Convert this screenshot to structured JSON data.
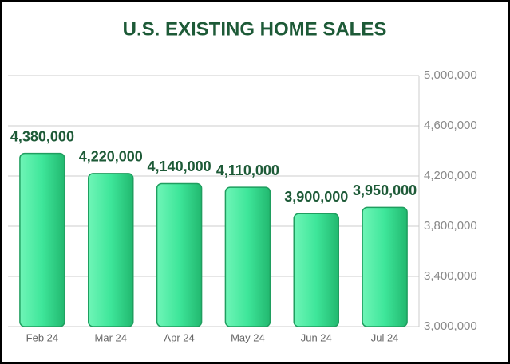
{
  "chart_data": {
    "type": "bar",
    "title": "U.S. EXISTING HOME SALES",
    "categories": [
      "Feb 24",
      "Mar 24",
      "Apr 24",
      "May 24",
      "Jun 24",
      "Jul 24"
    ],
    "values": [
      4380000,
      4220000,
      4140000,
      4110000,
      3900000,
      3950000
    ],
    "value_labels": [
      "4,380,000",
      "4,220,000",
      "4,140,000",
      "4,110,000",
      "3,900,000",
      "3,950,000"
    ],
    "color": "#3ee69a",
    "ylim": [
      3000000,
      5000000
    ],
    "yticks": [
      {
        "value": 3000000,
        "label": "3,000,000"
      },
      {
        "value": 3400000,
        "label": "3,400,000"
      },
      {
        "value": 3800000,
        "label": "3,800,000"
      },
      {
        "value": 4200000,
        "label": "4,200,000"
      },
      {
        "value": 4600000,
        "label": "4,600,000"
      },
      {
        "value": 5000000,
        "label": "5,000,000"
      }
    ],
    "grid": true
  }
}
